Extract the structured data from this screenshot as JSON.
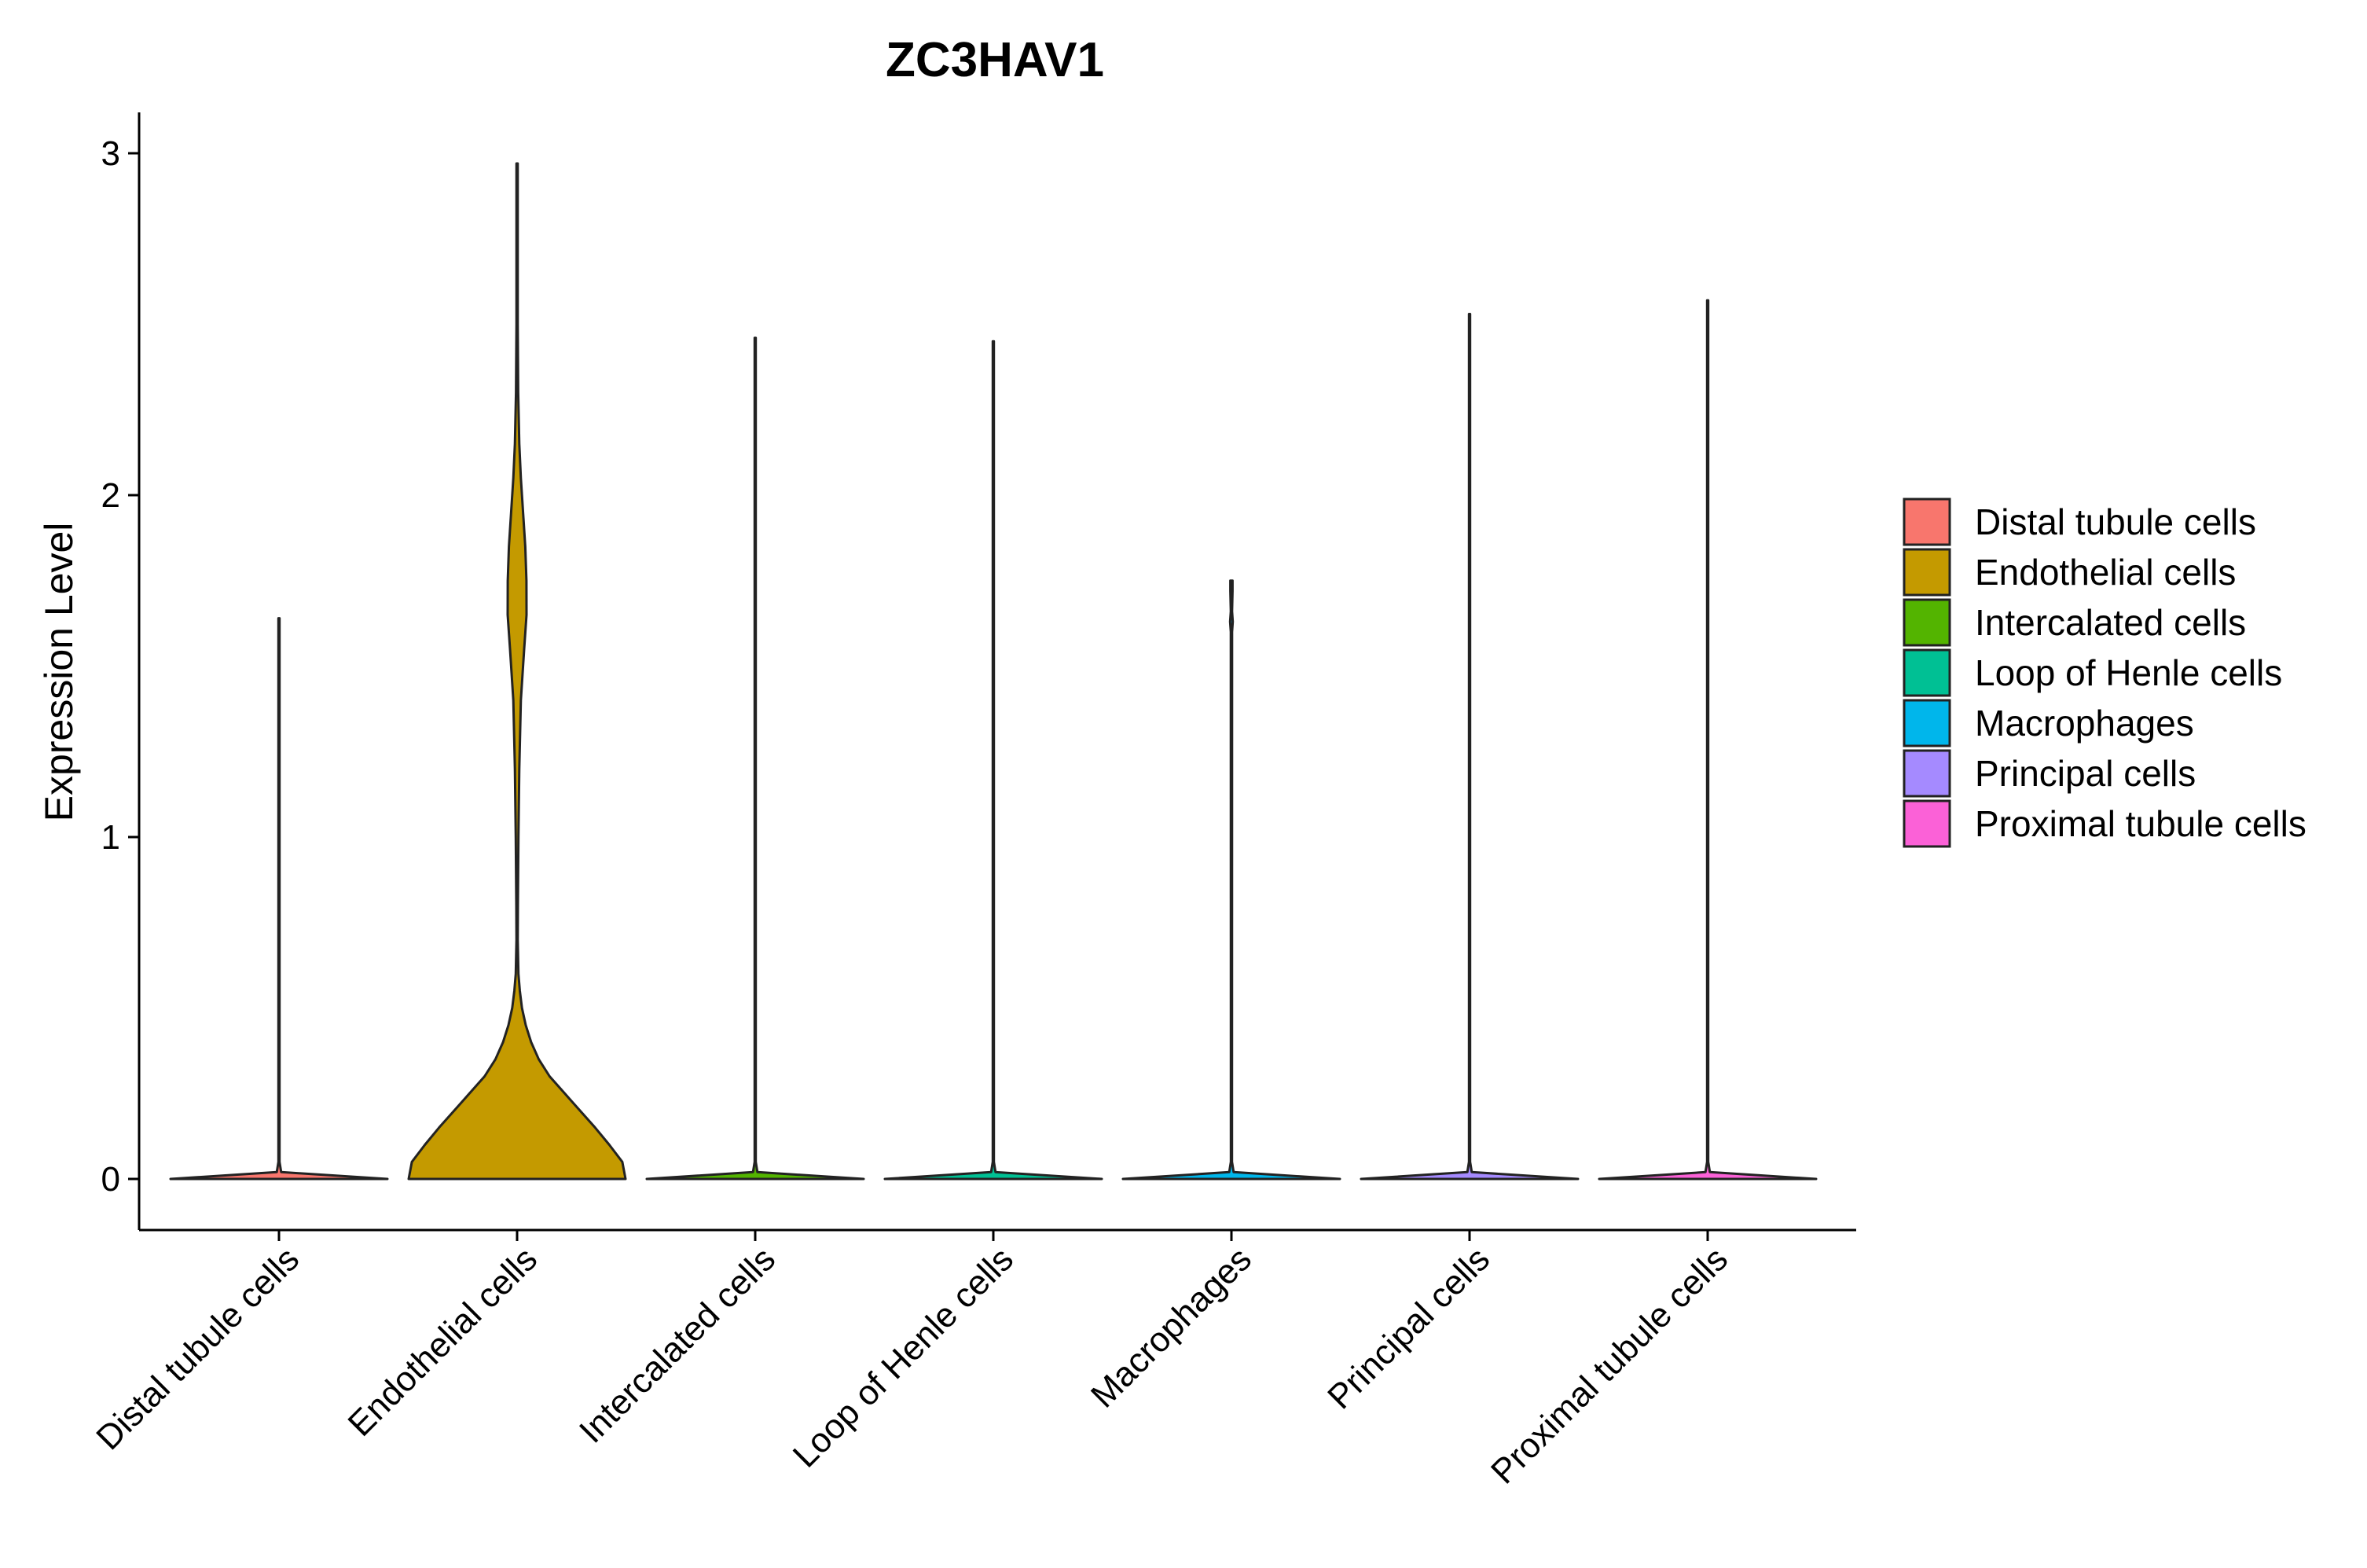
{
  "chart_data": {
    "type": "violin",
    "title": "ZC3HAV1",
    "xlabel": "",
    "ylabel": "Expression Level",
    "ylim": [
      -0.15,
      3.12
    ],
    "yticks": [
      0,
      1,
      2,
      3
    ],
    "grid": false,
    "legend_position": "right",
    "categories": [
      "Distal tubule cells",
      "Endothelial cells",
      "Intercalated cells",
      "Loop of Henle cells",
      "Macrophages",
      "Principal cells",
      "Proximal tubule cells"
    ],
    "colors": [
      "#F8766D",
      "#C49A00",
      "#53B400",
      "#00C094",
      "#00B6EB",
      "#A58AFF",
      "#FB61D7"
    ],
    "series": [
      {
        "category": "Distal tubule cells",
        "max": 1.64,
        "profile": [
          [
            0,
            1.0
          ],
          [
            0.02,
            0.02
          ],
          [
            0.05,
            0.005
          ],
          [
            1.64,
            0.005
          ]
        ]
      },
      {
        "category": "Endothelial cells",
        "max": 2.97,
        "profile": [
          [
            0,
            1.0
          ],
          [
            0.05,
            0.97
          ],
          [
            0.1,
            0.85
          ],
          [
            0.15,
            0.72
          ],
          [
            0.2,
            0.58
          ],
          [
            0.25,
            0.44
          ],
          [
            0.3,
            0.3
          ],
          [
            0.35,
            0.2
          ],
          [
            0.4,
            0.13
          ],
          [
            0.45,
            0.08
          ],
          [
            0.5,
            0.045
          ],
          [
            0.55,
            0.025
          ],
          [
            0.6,
            0.012
          ],
          [
            0.7,
            0.006
          ],
          [
            0.8,
            0.007
          ],
          [
            1.0,
            0.012
          ],
          [
            1.2,
            0.02
          ],
          [
            1.4,
            0.035
          ],
          [
            1.55,
            0.065
          ],
          [
            1.65,
            0.087
          ],
          [
            1.75,
            0.086
          ],
          [
            1.85,
            0.075
          ],
          [
            1.95,
            0.055
          ],
          [
            2.05,
            0.035
          ],
          [
            2.15,
            0.02
          ],
          [
            2.3,
            0.01
          ],
          [
            2.5,
            0.006
          ],
          [
            2.8,
            0.006
          ],
          [
            2.97,
            0.006
          ]
        ]
      },
      {
        "category": "Intercalated cells",
        "max": 2.46,
        "profile": [
          [
            0,
            1.0
          ],
          [
            0.02,
            0.02
          ],
          [
            0.05,
            0.005
          ],
          [
            2.46,
            0.005
          ]
        ]
      },
      {
        "category": "Loop of Henle cells",
        "max": 2.45,
        "profile": [
          [
            0,
            1.0
          ],
          [
            0.02,
            0.02
          ],
          [
            0.05,
            0.005
          ],
          [
            2.45,
            0.005
          ]
        ]
      },
      {
        "category": "Macrophages",
        "max": 1.75,
        "profile": [
          [
            0,
            1.0
          ],
          [
            0.02,
            0.02
          ],
          [
            0.05,
            0.005
          ],
          [
            1.6,
            0.006
          ],
          [
            1.63,
            0.012
          ],
          [
            1.66,
            0.006
          ],
          [
            1.72,
            0.01
          ],
          [
            1.75,
            0.01
          ]
        ]
      },
      {
        "category": "Principal cells",
        "max": 2.53,
        "profile": [
          [
            0,
            1.0
          ],
          [
            0.02,
            0.02
          ],
          [
            0.05,
            0.005
          ],
          [
            2.53,
            0.005
          ]
        ]
      },
      {
        "category": "Proximal tubule cells",
        "max": 2.57,
        "profile": [
          [
            0,
            1.0
          ],
          [
            0.02,
            0.02
          ],
          [
            0.05,
            0.005
          ],
          [
            2.57,
            0.005
          ]
        ]
      }
    ]
  }
}
